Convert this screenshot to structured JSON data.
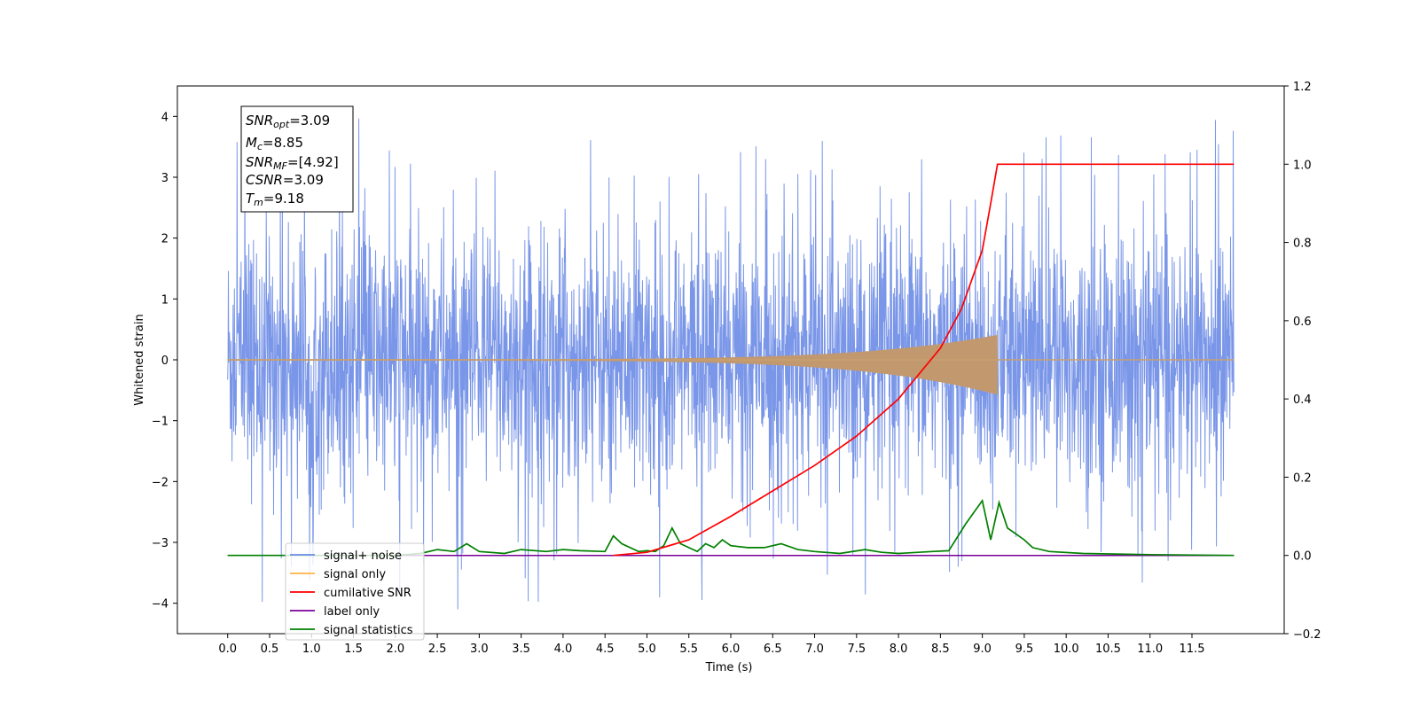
{
  "chart_data": {
    "type": "line",
    "xlabel": "Time (s)",
    "ylabel": "Whitened strain",
    "xlim": [
      -0.6,
      12.6
    ],
    "ylim": [
      -4.5,
      4.5
    ],
    "y2lim": [
      -0.2,
      1.2
    ],
    "x_ticks": [
      "0.0",
      "0.5",
      "1.0",
      "1.5",
      "2.0",
      "2.5",
      "3.0",
      "3.5",
      "4.0",
      "4.5",
      "5.0",
      "5.5",
      "6.0",
      "6.5",
      "7.0",
      "7.5",
      "8.0",
      "8.5",
      "9.0",
      "9.5",
      "10.0",
      "10.5",
      "11.0",
      "11.5"
    ],
    "x_tick_values": [
      0,
      0.5,
      1,
      1.5,
      2,
      2.5,
      3,
      3.5,
      4,
      4.5,
      5,
      5.5,
      6,
      6.5,
      7,
      7.5,
      8,
      8.5,
      9,
      9.5,
      10,
      10.5,
      11,
      11.5
    ],
    "y_ticks": [
      "4",
      "3",
      "2",
      "1",
      "0",
      "−1",
      "−2",
      "−3",
      "−4"
    ],
    "y_tick_values": [
      4,
      3,
      2,
      1,
      0,
      -1,
      -2,
      -3,
      -4
    ],
    "y2_ticks": [
      "1.2",
      "1.0",
      "0.8",
      "0.6",
      "0.4",
      "0.2",
      "0.0",
      "−0.2"
    ],
    "y2_tick_values": [
      1.2,
      1.0,
      0.8,
      0.6,
      0.4,
      0.2,
      0.0,
      -0.2
    ],
    "legend_position": "lower-left",
    "series": [
      {
        "name": "signal+ noise",
        "color": "#6b8be6",
        "axis": "left",
        "kind": "noise",
        "x_range": [
          0,
          12
        ],
        "amplitude_typical": 2.3,
        "amplitude_max": 4.1
      },
      {
        "name": "signal only",
        "color": "#ffb347",
        "axis": "left",
        "kind": "chirp",
        "x_range": [
          0,
          9.18
        ],
        "peak_amplitude": 0.4
      },
      {
        "name": "cumilative SNR",
        "color": "#ff0000",
        "axis": "right",
        "x": [
          4.6,
          5.0,
          5.5,
          6.0,
          6.5,
          7.0,
          7.5,
          8.0,
          8.5,
          8.75,
          9.0,
          9.1,
          9.18,
          12.0
        ],
        "y": [
          0.0,
          0.008,
          0.04,
          0.1,
          0.165,
          0.23,
          0.305,
          0.4,
          0.53,
          0.63,
          0.78,
          0.9,
          1.0,
          1.0
        ]
      },
      {
        "name": "label only",
        "color": "#7b0099",
        "axis": "right",
        "x": [
          0,
          12
        ],
        "y": [
          0.0,
          0.0
        ]
      },
      {
        "name": "signal statistics",
        "color": "#008000",
        "axis": "right",
        "x": [
          0,
          2.0,
          2.3,
          2.5,
          2.7,
          2.85,
          3.0,
          3.3,
          3.5,
          3.8,
          4.0,
          4.2,
          4.5,
          4.6,
          4.7,
          4.9,
          5.0,
          5.1,
          5.2,
          5.3,
          5.4,
          5.5,
          5.6,
          5.7,
          5.8,
          5.9,
          6.0,
          6.2,
          6.4,
          6.6,
          6.8,
          7.0,
          7.3,
          7.6,
          7.8,
          8.0,
          8.4,
          8.6,
          8.8,
          9.0,
          9.1,
          9.2,
          9.3,
          9.5,
          9.6,
          9.8,
          10.2,
          11.0,
          12.0
        ],
        "y": [
          0.0,
          0.0,
          0.005,
          0.015,
          0.01,
          0.03,
          0.01,
          0.005,
          0.015,
          0.01,
          0.015,
          0.012,
          0.01,
          0.05,
          0.03,
          0.01,
          0.012,
          0.01,
          0.025,
          0.07,
          0.03,
          0.02,
          0.01,
          0.03,
          0.02,
          0.04,
          0.025,
          0.02,
          0.02,
          0.03,
          0.015,
          0.01,
          0.005,
          0.015,
          0.008,
          0.005,
          0.01,
          0.012,
          0.08,
          0.14,
          0.04,
          0.135,
          0.07,
          0.04,
          0.02,
          0.01,
          0.005,
          0.002,
          0.0
        ]
      }
    ],
    "legend": [
      {
        "label": "signal+ noise",
        "color": "#6b8be6"
      },
      {
        "label": "signal only",
        "color": "#ffb347"
      },
      {
        "label": "cumilative SNR",
        "color": "#ff0000"
      },
      {
        "label": "label only",
        "color": "#7b0099"
      },
      {
        "label": "signal statistics",
        "color": "#008000"
      }
    ],
    "annotation": {
      "snr_opt": {
        "sym": "SNR",
        "sub": "opt",
        "val": "=3.09"
      },
      "mc": {
        "sym": "M",
        "sub": "c",
        "val": "=8.85"
      },
      "snr_mf": {
        "sym": "SNR",
        "sub": "MF",
        "val": "=[4.92]"
      },
      "csnr": {
        "sym": "CSNR",
        "sub": "",
        "val": "=3.09"
      },
      "tm": {
        "sym": "T",
        "sub": "m",
        "val": "=9.18"
      }
    }
  }
}
